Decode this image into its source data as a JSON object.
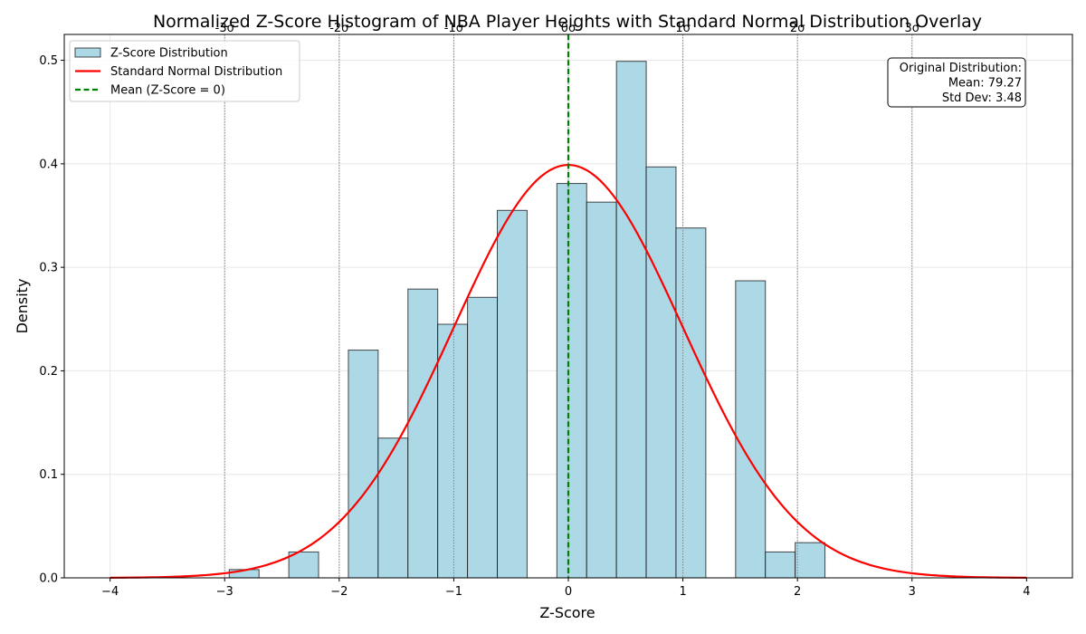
{
  "chart_data": {
    "type": "bar",
    "title": "Normalized Z-Score Histogram of NBA Player Heights with Standard Normal Distribution Overlay",
    "xlabel": "Z-Score",
    "ylabel": "Density",
    "xlim": [
      -4.4,
      4.4
    ],
    "ylim": [
      0,
      0.525
    ],
    "x_ticks": [
      -4,
      -3,
      -2,
      -1,
      0,
      1,
      2,
      3,
      4
    ],
    "x_tick_labels": [
      "−4",
      "−3",
      "−2",
      "−1",
      "0",
      "1",
      "2",
      "3",
      "4"
    ],
    "y_ticks": [
      0,
      0.1,
      0.2,
      0.3,
      0.4,
      0.5
    ],
    "y_tick_labels": [
      "0.0",
      "0.1",
      "0.2",
      "0.3",
      "0.4",
      "0.5"
    ],
    "grid": true,
    "legend_position": "top-left",
    "colors": {
      "bars": "#add8e6",
      "bar_edge": "#000000",
      "curve": "#ff0000",
      "mean_line": "#008000",
      "sigma_lines": "#808080"
    },
    "histogram": {
      "name": "Z-Score Distribution",
      "bin_starts": [
        -2.96,
        -2.44,
        -1.92,
        -1.66,
        -1.4,
        -1.14,
        -0.88,
        -0.62,
        -0.1,
        0.16,
        0.42,
        0.68,
        0.94,
        1.46,
        1.72,
        1.98
      ],
      "bin_width": 0.26,
      "densities": [
        0.008,
        0.025,
        0.22,
        0.135,
        0.279,
        0.245,
        0.271,
        0.355,
        0.381,
        0.363,
        0.499,
        0.397,
        0.338,
        0.287,
        0.025,
        0.034
      ]
    },
    "curve": {
      "name": "Standard Normal Distribution",
      "x_range": [
        -4,
        4
      ],
      "mean": 0,
      "std": 1
    },
    "mean_line": {
      "name": "Mean (Z-Score = 0)",
      "x": 0
    },
    "sigma_lines": {
      "x": [
        -3,
        -2,
        -1,
        0,
        1,
        2,
        3
      ],
      "labels": [
        "-3σ",
        "-2σ",
        "-1σ",
        "0σ",
        "1σ",
        "2σ",
        "3σ"
      ]
    },
    "annotation": {
      "lines": [
        "Original Distribution:",
        "Mean: 79.27",
        "Std Dev: 3.48"
      ],
      "position": "top-right"
    },
    "legend": [
      {
        "label": "Z-Score Distribution",
        "kind": "patch"
      },
      {
        "label": "Standard Normal Distribution",
        "kind": "line"
      },
      {
        "label": "Mean (Z-Score = 0)",
        "kind": "dashed"
      }
    ]
  }
}
